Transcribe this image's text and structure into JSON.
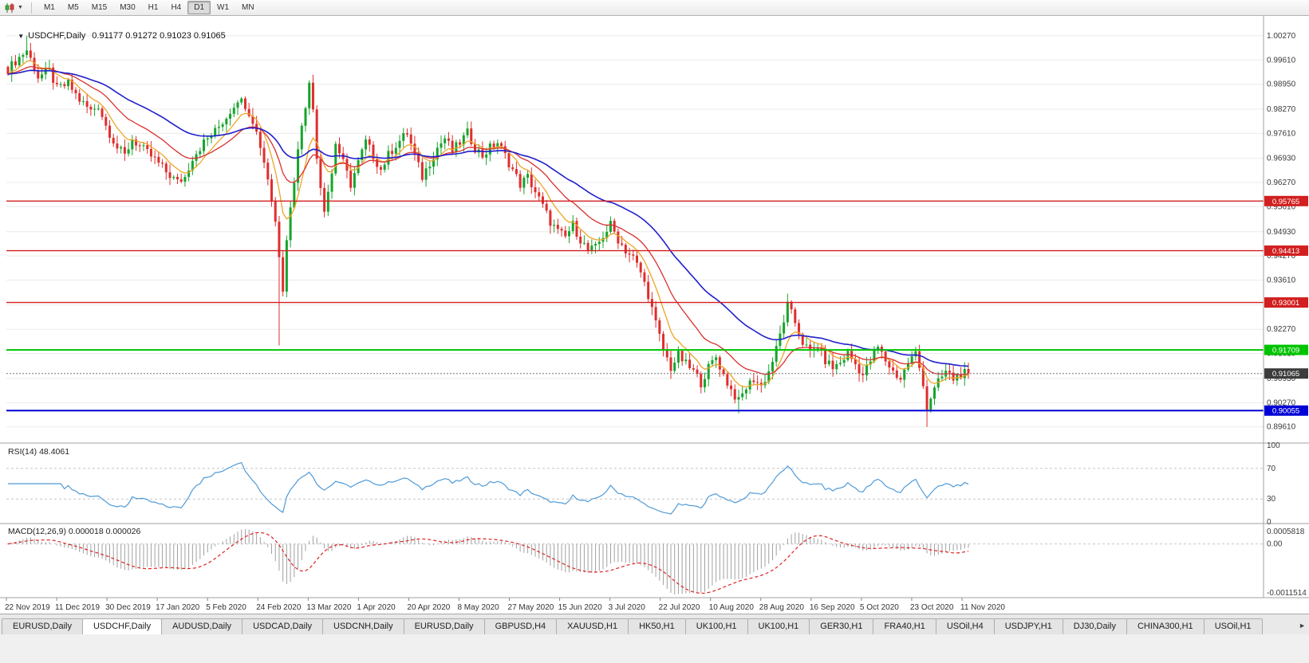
{
  "toolbar": {
    "timeframes": [
      "M1",
      "M5",
      "M15",
      "M30",
      "H1",
      "H4",
      "D1",
      "W1",
      "MN"
    ],
    "active_timeframe": "D1",
    "chart_type_icon": "candlestick-chart-icon",
    "dropdown_caret_icon": "chevron-down-icon"
  },
  "chart": {
    "title": "USDCHF,Daily",
    "ohlc_text": "0.91177 0.91272 0.91023 0.91065",
    "open": "0.91177",
    "high": "0.91272",
    "low": "0.91023",
    "close": "0.91065",
    "price_axis_labels": [
      "1.00270",
      "0.99610",
      "0.98950",
      "0.98270",
      "0.97610",
      "0.96930",
      "0.96270",
      "0.95610",
      "0.94930",
      "0.94270",
      "0.93610",
      "0.92930",
      "0.92270",
      "0.91610",
      "0.90930",
      "0.90270",
      "0.89610"
    ],
    "hlines": [
      {
        "price": 0.95765,
        "label": "0.95765",
        "color": "#d21f1f",
        "width": 1.4,
        "name": "resistance-line-1"
      },
      {
        "price": 0.94413,
        "label": "0.94413",
        "color": "#d21f1f",
        "width": 1.4,
        "name": "resistance-line-2"
      },
      {
        "price": 0.93001,
        "label": "0.93001",
        "color": "#d21f1f",
        "width": 1.4,
        "name": "resistance-line-3"
      },
      {
        "price": 0.91709,
        "label": "0.91709",
        "color": "#00c400",
        "width": 2,
        "name": "support-line-green"
      },
      {
        "price": 0.90055,
        "label": "0.90055",
        "color": "#0000d6",
        "width": 2,
        "name": "support-line-blue"
      }
    ],
    "current_price": {
      "value": 0.91065,
      "label": "0.91065",
      "box_color": "#3c3c3c"
    },
    "date_labels": [
      "22 Nov 2019",
      "11 Dec 2019",
      "30 Dec 2019",
      "17 Jan 2020",
      "5 Feb 2020",
      "24 Feb 2020",
      "13 Mar 2020",
      "1 Apr 2020",
      "20 Apr 2020",
      "8 May 2020",
      "27 May 2020",
      "15 Jun 2020",
      "3 Jul 2020",
      "22 Jul 2020",
      "10 Aug 2020",
      "28 Aug 2020",
      "16 Sep 2020",
      "5 Oct 2020",
      "23 Oct 2020",
      "11 Nov 2020"
    ],
    "colors": {
      "up": "#17a42c",
      "down": "#df2e2e",
      "grid": "#ebebeb",
      "separator": "#a0a0a0"
    }
  },
  "indicators": {
    "rsi": {
      "label": "RSI(14) 48.4061",
      "period": 14,
      "current": 48.4061,
      "axis_labels": [
        "100",
        "70",
        "30",
        "0"
      ],
      "level_lines": [
        70,
        30
      ],
      "color": "#4f9bd8"
    },
    "macd": {
      "label": "MACD(12,26,9) 0.000018 0.000026",
      "fast": 12,
      "slow": 26,
      "signal": 9,
      "values": [
        "0.000018",
        "0.000026"
      ],
      "axis_labels": [
        "0.0005818",
        "0.00",
        "-0.0011514"
      ],
      "histogram_color": "#a0a0a0",
      "signal_color": "#dd2222"
    }
  },
  "chart_data": {
    "type": "candlestick",
    "symbol": "USDCHF",
    "timeframe": "Daily",
    "x_range": [
      "22 Nov 2019",
      "20 Nov 2020"
    ],
    "y_range": [
      0.893,
      1.0068
    ],
    "candle_count": 256,
    "last_close": 0.91065,
    "price_anchors": [
      [
        0,
        0.9935
      ],
      [
        2,
        0.9958
      ],
      [
        5,
        0.9988
      ],
      [
        8,
        0.9915
      ],
      [
        11,
        0.9932
      ],
      [
        13,
        0.9882
      ],
      [
        16,
        0.9896
      ],
      [
        19,
        0.9852
      ],
      [
        22,
        0.9822
      ],
      [
        24,
        0.9838
      ],
      [
        26,
        0.9782
      ],
      [
        29,
        0.9722
      ],
      [
        31,
        0.97
      ],
      [
        33,
        0.9746
      ],
      [
        36,
        0.9716
      ],
      [
        39,
        0.969
      ],
      [
        42,
        0.9656
      ],
      [
        45,
        0.9628
      ],
      [
        47,
        0.9642
      ],
      [
        49,
        0.9696
      ],
      [
        52,
        0.9736
      ],
      [
        55,
        0.9766
      ],
      [
        58,
        0.9806
      ],
      [
        61,
        0.9856
      ],
      [
        63,
        0.984
      ],
      [
        65,
        0.9798
      ],
      [
        67,
        0.9728
      ],
      [
        69,
        0.964
      ],
      [
        71,
        0.952
      ],
      [
        72,
        0.9432
      ],
      [
        73,
        0.9342
      ],
      [
        74,
        0.9478
      ],
      [
        76,
        0.9635
      ],
      [
        78,
        0.979
      ],
      [
        80,
        0.9893
      ],
      [
        81,
        0.9828
      ],
      [
        82,
        0.9702
      ],
      [
        83,
        0.9618
      ],
      [
        84,
        0.9558
      ],
      [
        86,
        0.9652
      ],
      [
        87,
        0.9736
      ],
      [
        89,
        0.968
      ],
      [
        91,
        0.9622
      ],
      [
        93,
        0.9682
      ],
      [
        95,
        0.9738
      ],
      [
        97,
        0.97
      ],
      [
        99,
        0.9662
      ],
      [
        101,
        0.9702
      ],
      [
        103,
        0.973
      ],
      [
        106,
        0.9762
      ],
      [
        108,
        0.97
      ],
      [
        110,
        0.9642
      ],
      [
        112,
        0.9682
      ],
      [
        114,
        0.9722
      ],
      [
        116,
        0.9748
      ],
      [
        118,
        0.9712
      ],
      [
        120,
        0.9736
      ],
      [
        122,
        0.9762
      ],
      [
        124,
        0.9722
      ],
      [
        126,
        0.97
      ],
      [
        128,
        0.9722
      ],
      [
        130,
        0.9736
      ],
      [
        132,
        0.97
      ],
      [
        134,
        0.9662
      ],
      [
        136,
        0.9622
      ],
      [
        138,
        0.9642
      ],
      [
        140,
        0.9602
      ],
      [
        142,
        0.9562
      ],
      [
        144,
        0.952
      ],
      [
        146,
        0.9492
      ],
      [
        148,
        0.9478
      ],
      [
        150,
        0.9512
      ],
      [
        152,
        0.9472
      ],
      [
        154,
        0.9442
      ],
      [
        156,
        0.9448
      ],
      [
        158,
        0.9482
      ],
      [
        160,
        0.9512
      ],
      [
        162,
        0.9472
      ],
      [
        164,
        0.9442
      ],
      [
        166,
        0.9422
      ],
      [
        168,
        0.9382
      ],
      [
        170,
        0.9322
      ],
      [
        172,
        0.9242
      ],
      [
        174,
        0.9172
      ],
      [
        176,
        0.9122
      ],
      [
        178,
        0.9156
      ],
      [
        180,
        0.9132
      ],
      [
        182,
        0.9112
      ],
      [
        184,
        0.9082
      ],
      [
        186,
        0.9122
      ],
      [
        188,
        0.9152
      ],
      [
        190,
        0.9102
      ],
      [
        192,
        0.9062
      ],
      [
        194,
        0.903
      ],
      [
        196,
        0.9068
      ],
      [
        198,
        0.9092
      ],
      [
        200,
        0.9072
      ],
      [
        202,
        0.9112
      ],
      [
        204,
        0.9172
      ],
      [
        206,
        0.9252
      ],
      [
        207,
        0.9292
      ],
      [
        209,
        0.9246
      ],
      [
        211,
        0.9192
      ],
      [
        213,
        0.9162
      ],
      [
        215,
        0.9182
      ],
      [
        217,
        0.9142
      ],
      [
        219,
        0.9122
      ],
      [
        221,
        0.9136
      ],
      [
        223,
        0.9162
      ],
      [
        225,
        0.9132
      ],
      [
        227,
        0.9102
      ],
      [
        229,
        0.9142
      ],
      [
        231,
        0.9178
      ],
      [
        233,
        0.9142
      ],
      [
        235,
        0.9112
      ],
      [
        237,
        0.9092
      ],
      [
        239,
        0.9136
      ],
      [
        241,
        0.9162
      ],
      [
        243,
        0.9082
      ],
      [
        244,
        0.9012
      ],
      [
        245,
        0.9042
      ],
      [
        247,
        0.9082
      ],
      [
        249,
        0.9112
      ],
      [
        251,
        0.9092
      ],
      [
        253,
        0.9106
      ],
      [
        255,
        0.91065
      ]
    ],
    "wick_overrides": [
      {
        "i": 5,
        "high": 1.0027
      },
      {
        "i": 72,
        "low": 0.9183
      },
      {
        "i": 80,
        "high": 0.9901
      },
      {
        "i": 194,
        "low": 0.8998
      },
      {
        "i": 244,
        "low": 0.8961
      }
    ],
    "moving_averages": [
      {
        "name": "fast",
        "period": 8,
        "color": "#eda528"
      },
      {
        "name": "medium",
        "period": 20,
        "color": "#d93030"
      },
      {
        "name": "slow",
        "period": 45,
        "color": "#2020cc"
      }
    ]
  },
  "tabs": {
    "items": [
      "EURUSD,Daily",
      "USDCHF,Daily",
      "AUDUSD,Daily",
      "USDCAD,Daily",
      "USDCNH,Daily",
      "EURUSD,Daily",
      "GBPUSD,H4",
      "XAUUSD,H1",
      "HK50,H1",
      "UK100,H1",
      "UK100,H1",
      "GER30,H1",
      "FRA40,H1",
      "USOil,H4",
      "USDJPY,H1",
      "DJ30,Daily",
      "CHINA300,H1",
      "USOil,H1"
    ],
    "active_index": 1,
    "scroll_right_icon": "chevron-right-icon"
  }
}
